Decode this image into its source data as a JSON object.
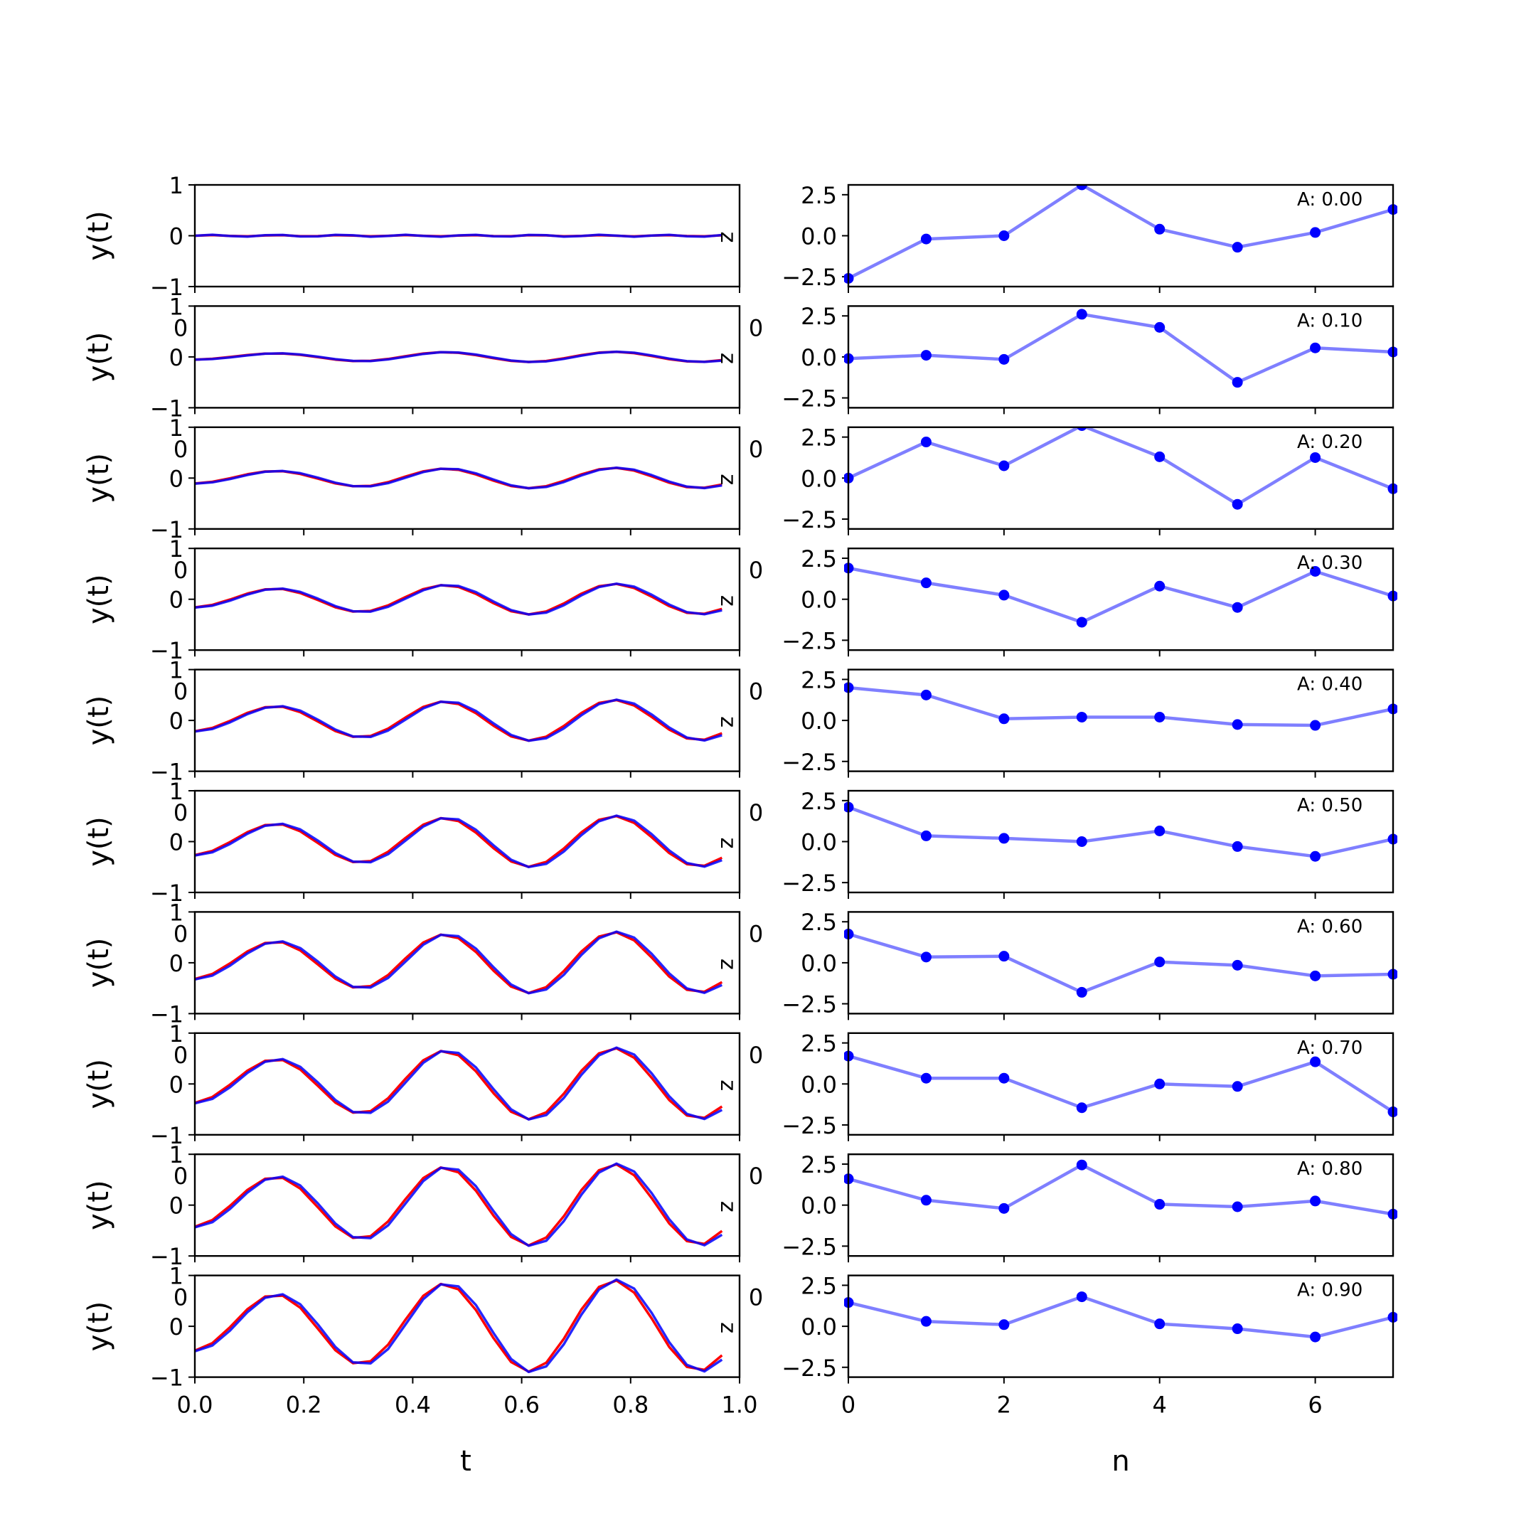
{
  "figure": {
    "left_xlabel": "t",
    "right_xlabel": "n",
    "left_ylabel": "y(t)",
    "left_inset_label": "z",
    "left_overlap_tick": "0",
    "right_overlap_tick": "0"
  },
  "chart_data": [
    {
      "type": "line",
      "panel": "left",
      "ylabel": "y(t)",
      "xlabel": "t",
      "xlim": [
        0.0,
        1.0
      ],
      "ylim": [
        -1,
        1
      ],
      "xticks": [
        "0.0",
        "0.2",
        "0.4",
        "0.6",
        "0.8",
        "1.0"
      ],
      "yticks": [
        "-1",
        "0",
        "1"
      ],
      "grid": false,
      "series_colors": [
        "#0000ff",
        "#ff0000"
      ],
      "t": [
        0.0,
        0.0323,
        0.0645,
        0.0968,
        0.129,
        0.1613,
        0.1935,
        0.2258,
        0.2581,
        0.2903,
        0.3226,
        0.3548,
        0.3871,
        0.4194,
        0.4516,
        0.4839,
        0.5161,
        0.5484,
        0.5806,
        0.6129,
        0.6452,
        0.6774,
        0.7097,
        0.7419,
        0.7742,
        0.8065,
        0.8387,
        0.871,
        0.9032,
        0.9355,
        0.9677
      ],
      "amplitudes": [
        0.0,
        0.1,
        0.2,
        0.3,
        0.4,
        0.5,
        0.6,
        0.7,
        0.8,
        0.9
      ],
      "note_values": "each row: y = A * shape(t); blue and red curves nearly coincide"
    },
    {
      "type": "line",
      "panel": "right",
      "xlabel": "n",
      "xlim": [
        0,
        7
      ],
      "ylim": [
        -3.1,
        3.1
      ],
      "xticks": [
        "0",
        "2",
        "4",
        "6"
      ],
      "yticks": [
        "-2.5",
        "0.0",
        "2.5"
      ],
      "grid": false,
      "color": "#0000ff",
      "n": [
        0,
        1,
        2,
        3,
        4,
        5,
        6,
        7
      ],
      "rows": [
        {
          "label": "A: 0.00",
          "values": [
            -2.6,
            -0.2,
            0.0,
            3.1,
            0.4,
            -0.7,
            0.2,
            1.6
          ]
        },
        {
          "label": "A: 0.10",
          "values": [
            -0.1,
            0.1,
            -0.15,
            2.6,
            1.8,
            -1.55,
            0.55,
            0.3
          ]
        },
        {
          "label": "A: 0.20",
          "values": [
            0.0,
            2.2,
            0.75,
            3.2,
            1.3,
            -1.6,
            1.25,
            -0.65
          ]
        },
        {
          "label": "A: 0.30",
          "values": [
            1.9,
            1.0,
            0.25,
            -1.4,
            0.8,
            -0.5,
            1.7,
            0.2
          ]
        },
        {
          "label": "A: 0.40",
          "values": [
            2.0,
            1.55,
            0.1,
            0.2,
            0.2,
            -0.25,
            -0.3,
            0.7
          ]
        },
        {
          "label": "A: 0.50",
          "values": [
            2.1,
            0.35,
            0.2,
            0.0,
            0.65,
            -0.3,
            -0.9,
            0.15
          ]
        },
        {
          "label": "A: 0.60",
          "values": [
            1.75,
            0.35,
            0.4,
            -1.8,
            0.05,
            -0.15,
            -0.8,
            -0.7
          ]
        },
        {
          "label": "A: 0.70",
          "values": [
            1.7,
            0.35,
            0.35,
            -1.45,
            0.0,
            -0.15,
            1.35,
            -1.7
          ]
        },
        {
          "label": "A: 0.80",
          "values": [
            1.6,
            0.3,
            -0.2,
            2.45,
            0.05,
            -0.1,
            0.25,
            -0.55
          ]
        },
        {
          "label": "A: 0.90",
          "values": [
            1.45,
            0.3,
            0.1,
            1.8,
            0.15,
            -0.15,
            -0.65,
            0.55
          ]
        }
      ]
    }
  ]
}
